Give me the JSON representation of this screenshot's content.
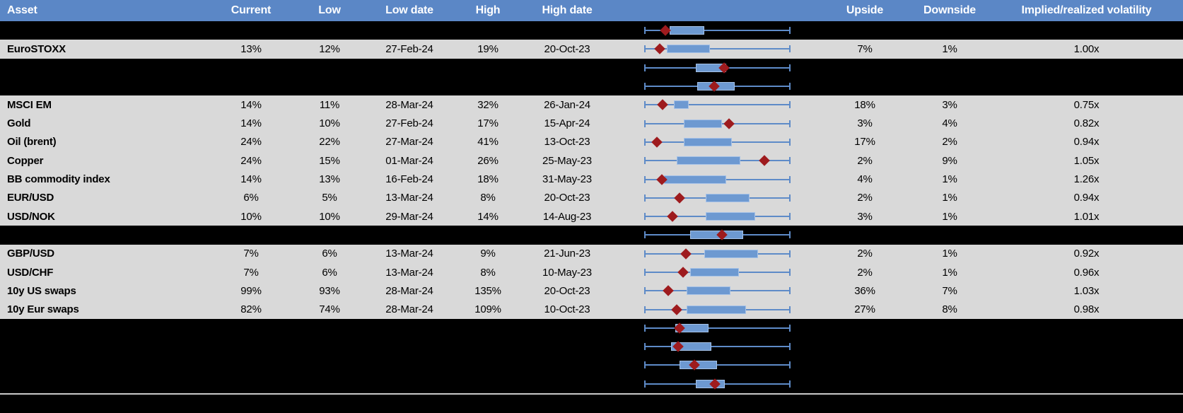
{
  "colors": {
    "header_bg": "#5B87C6",
    "header_text": "#FFFFFF",
    "data_row_bg": "#D9D9D9",
    "hidden_row_bg": "#000000",
    "cell_text": "#000000",
    "box_fill": "#6D99D1",
    "box_border": "#A6C2E7",
    "whisker": "#5E8BC8",
    "marker_diamond": "#9E1B1E",
    "divider": "#C9C9C9"
  },
  "chart_data": {
    "type": "table",
    "note": "Implied volatility table; middle column shows per-row box-whisker plots (blue box with red diamond at current level), whiskers span each asset's range. Several rows are blacked out but their box plots remain visible. Box/marker positions given as 0-1 fractions of the whisker span.",
    "columns": [
      "Asset",
      "Current",
      "Low",
      "Low date",
      "High",
      "High date",
      "",
      "Upside",
      "Downside",
      "Implied/realized volatility"
    ],
    "rows": [
      {
        "hidden": true,
        "asset": "",
        "current": "",
        "low": "",
        "low_date": "",
        "high": "",
        "high_date": "",
        "upside": "",
        "downside": "",
        "implied_realized": "",
        "boxplot": {
          "whisker_lo": 0,
          "whisker_hi": 1,
          "box_lo": 0.17,
          "box_hi": 0.41,
          "marker": 0.14
        }
      },
      {
        "hidden": false,
        "asset": "EuroSTOXX",
        "current": "13%",
        "low": "12%",
        "low_date": "27-Feb-24",
        "high": "19%",
        "high_date": "20-Oct-23",
        "upside": "7%",
        "downside": "1%",
        "implied_realized": "1.00x",
        "boxplot": {
          "whisker_lo": 0,
          "whisker_hi": 1,
          "box_lo": 0.15,
          "box_hi": 0.45,
          "marker": 0.1
        }
      },
      {
        "hidden": true,
        "asset": "",
        "current": "",
        "low": "",
        "low_date": "",
        "high": "",
        "high_date": "",
        "upside": "",
        "downside": "",
        "implied_realized": "",
        "boxplot": {
          "whisker_lo": 0,
          "whisker_hi": 1,
          "box_lo": 0.35,
          "box_hi": 0.56,
          "marker": 0.545
        }
      },
      {
        "hidden": true,
        "asset": "",
        "current": "",
        "low": "",
        "low_date": "",
        "high": "",
        "high_date": "",
        "upside": "",
        "downside": "",
        "implied_realized": "",
        "boxplot": {
          "whisker_lo": 0,
          "whisker_hi": 1,
          "box_lo": 0.36,
          "box_hi": 0.62,
          "marker": 0.48
        }
      },
      {
        "hidden": false,
        "asset": "MSCI EM",
        "current": "14%",
        "low": "11%",
        "low_date": "28-Mar-24",
        "high": "32%",
        "high_date": "26-Jan-24",
        "upside": "18%",
        "downside": "3%",
        "implied_realized": "0.75x",
        "boxplot": {
          "whisker_lo": 0,
          "whisker_hi": 1,
          "box_lo": 0.2,
          "box_hi": 0.3,
          "marker": 0.12
        }
      },
      {
        "hidden": false,
        "asset": "Gold",
        "current": "14%",
        "low": "10%",
        "low_date": "27-Feb-24",
        "high": "17%",
        "high_date": "15-Apr-24",
        "upside": "3%",
        "downside": "4%",
        "implied_realized": "0.82x",
        "boxplot": {
          "whisker_lo": 0,
          "whisker_hi": 1,
          "box_lo": 0.27,
          "box_hi": 0.53,
          "marker": 0.58
        }
      },
      {
        "hidden": false,
        "asset": "Oil (brent)",
        "current": "24%",
        "low": "22%",
        "low_date": "27-Mar-24",
        "high": "41%",
        "high_date": "13-Oct-23",
        "upside": "17%",
        "downside": "2%",
        "implied_realized": "0.94x",
        "boxplot": {
          "whisker_lo": 0,
          "whisker_hi": 1,
          "box_lo": 0.27,
          "box_hi": 0.6,
          "marker": 0.085
        }
      },
      {
        "hidden": false,
        "asset": "Copper",
        "current": "24%",
        "low": "15%",
        "low_date": "01-Mar-24",
        "high": "26%",
        "high_date": "25-May-23",
        "upside": "2%",
        "downside": "9%",
        "implied_realized": "1.05x",
        "boxplot": {
          "whisker_lo": 0,
          "whisker_hi": 1,
          "box_lo": 0.22,
          "box_hi": 0.66,
          "marker": 0.825
        }
      },
      {
        "hidden": false,
        "asset": "BB commodity index",
        "current": "14%",
        "low": "13%",
        "low_date": "16-Feb-24",
        "high": "18%",
        "high_date": "31-May-23",
        "upside": "4%",
        "downside": "1%",
        "implied_realized": "1.26x",
        "boxplot": {
          "whisker_lo": 0,
          "whisker_hi": 1,
          "box_lo": 0.13,
          "box_hi": 0.56,
          "marker": 0.115
        }
      },
      {
        "hidden": false,
        "asset": "EUR/USD",
        "current": "6%",
        "low": "5%",
        "low_date": "13-Mar-24",
        "high": "8%",
        "high_date": "20-Oct-23",
        "upside": "2%",
        "downside": "1%",
        "implied_realized": "0.94x",
        "boxplot": {
          "whisker_lo": 0,
          "whisker_hi": 1,
          "box_lo": 0.42,
          "box_hi": 0.72,
          "marker": 0.24
        }
      },
      {
        "hidden": false,
        "asset": "USD/NOK",
        "current": "10%",
        "low": "10%",
        "low_date": "29-Mar-24",
        "high": "14%",
        "high_date": "14-Aug-23",
        "upside": "3%",
        "downside": "1%",
        "implied_realized": "1.01x",
        "boxplot": {
          "whisker_lo": 0,
          "whisker_hi": 1,
          "box_lo": 0.42,
          "box_hi": 0.76,
          "marker": 0.19
        }
      },
      {
        "hidden": true,
        "asset": "",
        "current": "",
        "low": "",
        "low_date": "",
        "high": "",
        "high_date": "",
        "upside": "",
        "downside": "",
        "implied_realized": "",
        "boxplot": {
          "whisker_lo": 0,
          "whisker_hi": 1,
          "box_lo": 0.31,
          "box_hi": 0.68,
          "marker": 0.53
        }
      },
      {
        "hidden": false,
        "asset": "GBP/USD",
        "current": "7%",
        "low": "6%",
        "low_date": "13-Mar-24",
        "high": "9%",
        "high_date": "21-Jun-23",
        "upside": "2%",
        "downside": "1%",
        "implied_realized": "0.92x",
        "boxplot": {
          "whisker_lo": 0,
          "whisker_hi": 1,
          "box_lo": 0.41,
          "box_hi": 0.78,
          "marker": 0.285
        }
      },
      {
        "hidden": false,
        "asset": "USD/CHF",
        "current": "7%",
        "low": "6%",
        "low_date": "13-Mar-24",
        "high": "8%",
        "high_date": "10-May-23",
        "upside": "2%",
        "downside": "1%",
        "implied_realized": "0.96x",
        "boxplot": {
          "whisker_lo": 0,
          "whisker_hi": 1,
          "box_lo": 0.31,
          "box_hi": 0.65,
          "marker": 0.265
        }
      },
      {
        "hidden": false,
        "asset": "10y US swaps",
        "current": "99%",
        "low": "93%",
        "low_date": "28-Mar-24",
        "high": "135%",
        "high_date": "20-Oct-23",
        "upside": "36%",
        "downside": "7%",
        "implied_realized": "1.03x",
        "boxplot": {
          "whisker_lo": 0,
          "whisker_hi": 1,
          "box_lo": 0.29,
          "box_hi": 0.59,
          "marker": 0.16
        }
      },
      {
        "hidden": false,
        "asset": "10y Eur swaps",
        "current": "82%",
        "low": "74%",
        "low_date": "28-Mar-24",
        "high": "109%",
        "high_date": "10-Oct-23",
        "upside": "27%",
        "downside": "8%",
        "implied_realized": "0.98x",
        "boxplot": {
          "whisker_lo": 0,
          "whisker_hi": 1,
          "box_lo": 0.29,
          "box_hi": 0.7,
          "marker": 0.22
        }
      },
      {
        "hidden": true,
        "asset": "",
        "current": "",
        "low": "",
        "low_date": "",
        "high": "",
        "high_date": "",
        "upside": "",
        "downside": "",
        "implied_realized": "",
        "boxplot": {
          "whisker_lo": 0,
          "whisker_hi": 1,
          "box_lo": 0.21,
          "box_hi": 0.44,
          "marker": 0.24
        }
      },
      {
        "hidden": true,
        "asset": "",
        "current": "",
        "low": "",
        "low_date": "",
        "high": "",
        "high_date": "",
        "upside": "",
        "downside": "",
        "implied_realized": "",
        "boxplot": {
          "whisker_lo": 0,
          "whisker_hi": 1,
          "box_lo": 0.18,
          "box_hi": 0.46,
          "marker": 0.23
        }
      },
      {
        "hidden": true,
        "asset": "",
        "current": "",
        "low": "",
        "low_date": "",
        "high": "",
        "high_date": "",
        "upside": "",
        "downside": "",
        "implied_realized": "",
        "boxplot": {
          "whisker_lo": 0,
          "whisker_hi": 1,
          "box_lo": 0.24,
          "box_hi": 0.5,
          "marker": 0.34
        }
      },
      {
        "hidden": true,
        "asset": "",
        "current": "",
        "low": "",
        "low_date": "",
        "high": "",
        "high_date": "",
        "upside": "",
        "downside": "",
        "implied_realized": "",
        "boxplot": {
          "whisker_lo": 0,
          "whisker_hi": 1,
          "box_lo": 0.35,
          "box_hi": 0.55,
          "marker": 0.485
        }
      }
    ]
  }
}
